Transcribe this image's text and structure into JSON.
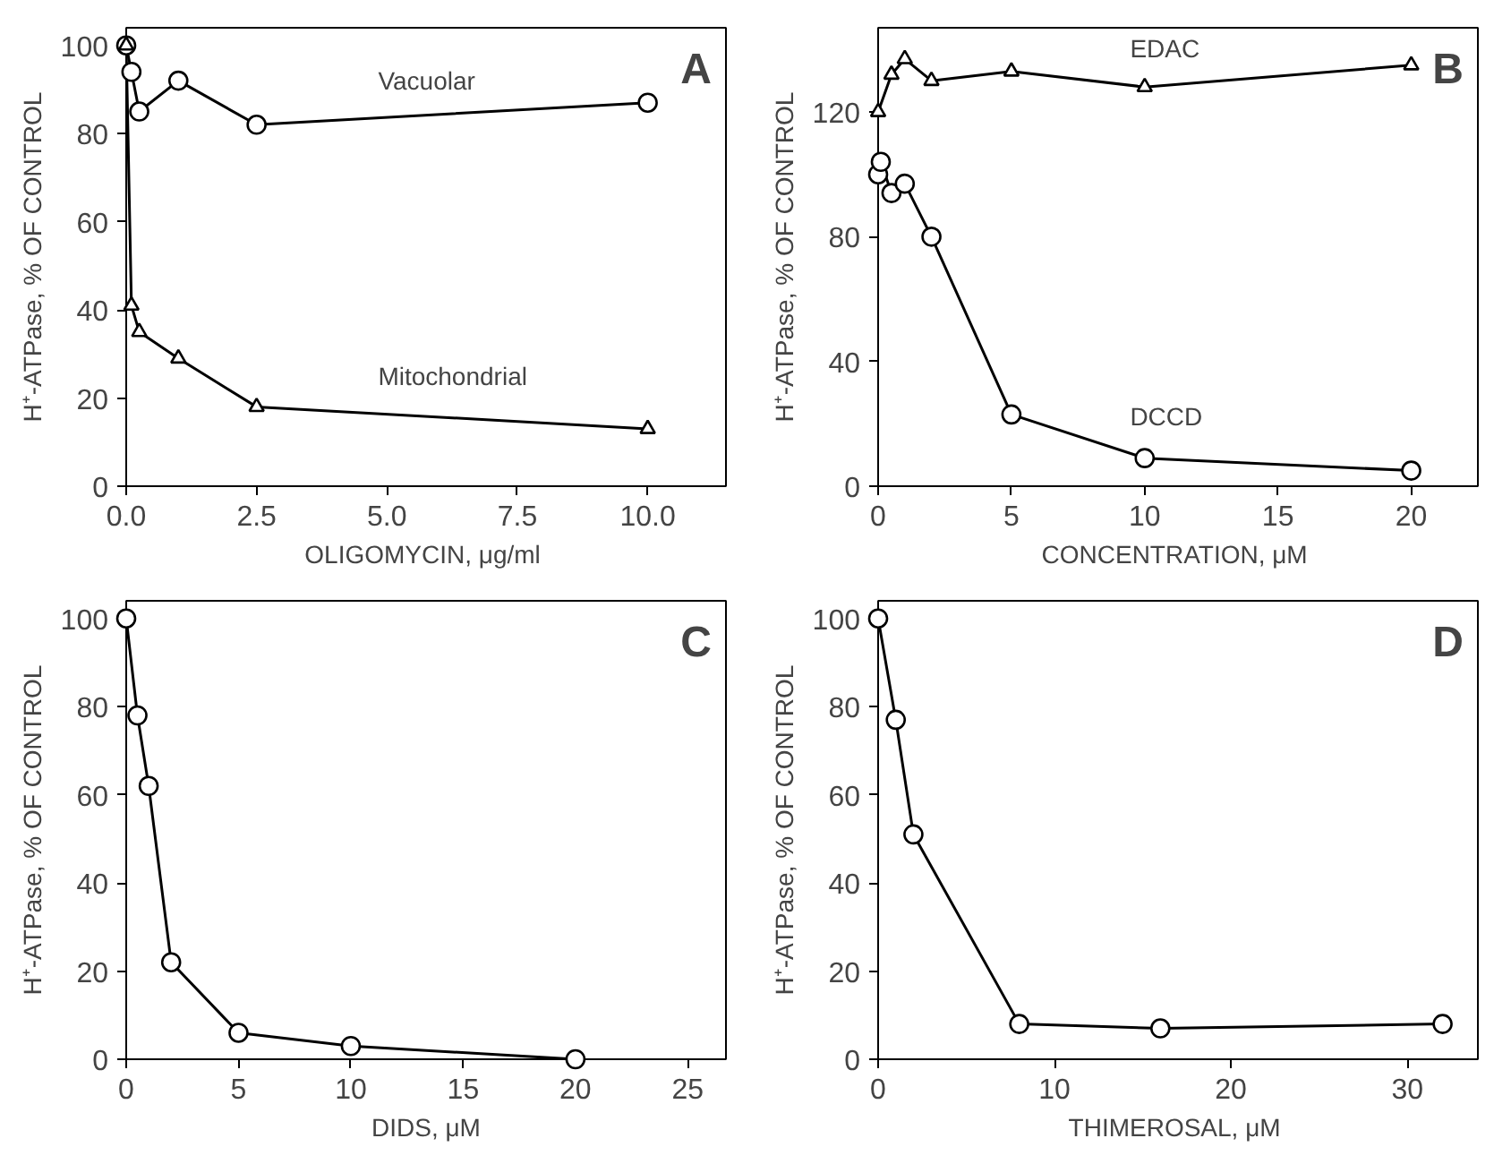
{
  "chart_data": [
    {
      "type": "line",
      "xlabel": "OLIGOMYCIN,  μg/ml",
      "ylabel": "H⁺-ATPase, % OF CONTROL",
      "annotations": [
        "A"
      ],
      "xlim": [
        0,
        11.5
      ],
      "ylim": [
        0,
        104
      ],
      "xticks": [
        {
          "value": 0,
          "label": "0.0"
        },
        {
          "value": 2.5,
          "label": "2.5"
        },
        {
          "value": 5,
          "label": "5.0"
        },
        {
          "value": 7.5,
          "label": "7.5"
        },
        {
          "value": 10,
          "label": "10.0"
        }
      ],
      "yticks": [
        0,
        20,
        40,
        60,
        80,
        100
      ],
      "grid": false,
      "series": [
        {
          "name": "Vacuolar",
          "color": "#000000",
          "marker": "circle",
          "x": [
            0,
            0.1,
            0.25,
            1,
            2.5,
            10
          ],
          "values": [
            100,
            94,
            85,
            92,
            82,
            87
          ]
        },
        {
          "name": "Mitochondrial",
          "color": "#000000",
          "marker": "triangle",
          "x": [
            0,
            0.1,
            0.25,
            1,
            2.5,
            10
          ],
          "values": [
            100,
            41,
            35,
            29,
            18,
            13
          ]
        }
      ]
    },
    {
      "type": "line",
      "xlabel": "CONCENTRATION,  μM",
      "ylabel": "H⁺-ATPase, % OF CONTROL",
      "annotations": [
        "B"
      ],
      "xlim": [
        0,
        22.5
      ],
      "ylim": [
        0,
        147
      ],
      "xticks": [
        0,
        5,
        10,
        15,
        20
      ],
      "yticks": [
        0,
        40,
        80,
        120
      ],
      "grid": false,
      "series": [
        {
          "name": "EDAC",
          "color": "#000000",
          "marker": "triangle",
          "x": [
            0,
            0.5,
            1,
            2,
            5,
            10,
            20
          ],
          "values": [
            120,
            132,
            137,
            130,
            133,
            128,
            135
          ]
        },
        {
          "name": "DCCD",
          "color": "#000000",
          "marker": "circle",
          "x": [
            0,
            0.1,
            0.5,
            1,
            2,
            5,
            10,
            20
          ],
          "values": [
            100,
            104,
            94,
            97,
            80,
            23,
            9,
            5
          ]
        }
      ]
    },
    {
      "type": "line",
      "xlabel": "DIDS, μM",
      "ylabel": "H⁺-ATPase, % OF CONTROL",
      "annotations": [
        "C"
      ],
      "xlim": [
        0,
        26.7
      ],
      "ylim": [
        0,
        104
      ],
      "xticks": [
        0,
        5,
        10,
        15,
        20,
        25
      ],
      "yticks": [
        0,
        20,
        40,
        60,
        80,
        100
      ],
      "grid": false,
      "series": [
        {
          "color": "#000000",
          "marker": "circle",
          "x": [
            0,
            0.5,
            1,
            2,
            5,
            10,
            20
          ],
          "values": [
            100,
            78,
            62,
            22,
            6,
            3,
            0
          ]
        }
      ]
    },
    {
      "type": "line",
      "xlabel": "THIMEROSAL,  μM",
      "ylabel": "H⁺-ATPase, % OF CONTROL",
      "annotations": [
        "D"
      ],
      "xlim": [
        0,
        34
      ],
      "ylim": [
        0,
        104
      ],
      "xticks": [
        0,
        10,
        20,
        30
      ],
      "yticks": [
        0,
        20,
        40,
        60,
        80,
        100
      ],
      "grid": false,
      "series": [
        {
          "color": "#000000",
          "marker": "circle",
          "x": [
            0,
            1,
            2,
            8,
            16,
            32
          ],
          "values": [
            100,
            77,
            51,
            8,
            7,
            8
          ]
        }
      ]
    }
  ]
}
